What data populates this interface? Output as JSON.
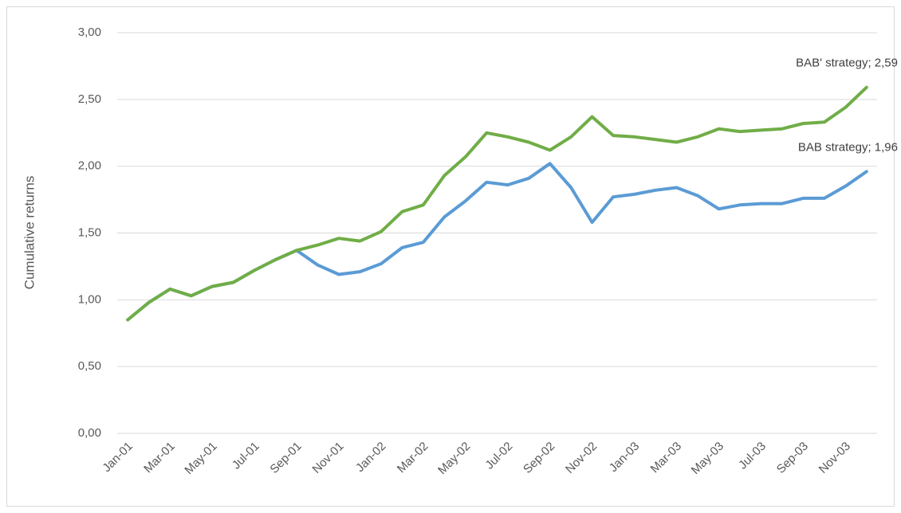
{
  "chart_data": {
    "type": "line",
    "y_label": "Cumulative returns",
    "categories": [
      "Jan-01",
      null,
      "Mar-01",
      null,
      "May-01",
      null,
      "Jul-01",
      null,
      "Sep-01",
      null,
      "Nov-01",
      null,
      "Jan-02",
      null,
      "Mar-02",
      null,
      "May-02",
      null,
      "Jul-02",
      null,
      "Sep-02",
      null,
      "Nov-02",
      null,
      "Jan-03",
      null,
      "Mar-03",
      null,
      "May-03",
      null,
      "Jul-03",
      null,
      "Sep-03",
      null,
      "Nov-03",
      null
    ],
    "series": [
      {
        "color": "#5b9bd5",
        "values": [
          0.85,
          0.98,
          1.08,
          1.03,
          1.1,
          1.13,
          1.22,
          1.3,
          1.37,
          1.26,
          1.19,
          1.21,
          1.27,
          1.39,
          1.43,
          1.62,
          1.74,
          1.88,
          1.86,
          1.91,
          2.02,
          1.84,
          1.58,
          1.77,
          1.79,
          1.82,
          1.84,
          1.78,
          1.68,
          1.71,
          1.72,
          1.72,
          1.76,
          1.76,
          1.85,
          1.96
        ],
        "value_labels": [
          null,
          null,
          null,
          null,
          null,
          null,
          null,
          null,
          null,
          null,
          null,
          null,
          null,
          null,
          null,
          null,
          null,
          null,
          null,
          null,
          null,
          null,
          null,
          null,
          null,
          null,
          null,
          null,
          null,
          null,
          null,
          null,
          null,
          null,
          null,
          "BAB strategy; 1,96"
        ]
      },
      {
        "color": "#70ad47",
        "values": [
          0.85,
          0.98,
          1.08,
          1.03,
          1.1,
          1.13,
          1.22,
          1.3,
          1.37,
          1.41,
          1.46,
          1.44,
          1.51,
          1.66,
          1.71,
          1.93,
          2.07,
          2.25,
          2.22,
          2.18,
          2.12,
          2.22,
          2.37,
          2.23,
          2.22,
          2.2,
          2.18,
          2.22,
          2.28,
          2.26,
          2.27,
          2.28,
          2.32,
          2.33,
          2.44,
          2.59
        ],
        "value_labels": [
          null,
          null,
          null,
          null,
          null,
          null,
          null,
          null,
          null,
          null,
          null,
          null,
          null,
          null,
          null,
          null,
          null,
          null,
          null,
          null,
          null,
          null,
          null,
          null,
          null,
          null,
          null,
          null,
          null,
          null,
          null,
          null,
          null,
          null,
          null,
          "BAB' strategy; 2,59"
        ]
      }
    ],
    "ylim": [
      0,
      3
    ],
    "yticks": [
      {
        "value": 0,
        "label": "0,00"
      },
      {
        "value": 0.5,
        "label": "0,50"
      },
      {
        "value": 1,
        "label": "1,00"
      },
      {
        "value": 1.5,
        "label": "1,50"
      },
      {
        "value": 2,
        "label": "2,00"
      },
      {
        "value": 2.5,
        "label": "2,50"
      },
      {
        "value": 3,
        "label": "3,00"
      }
    ],
    "grid": true
  }
}
